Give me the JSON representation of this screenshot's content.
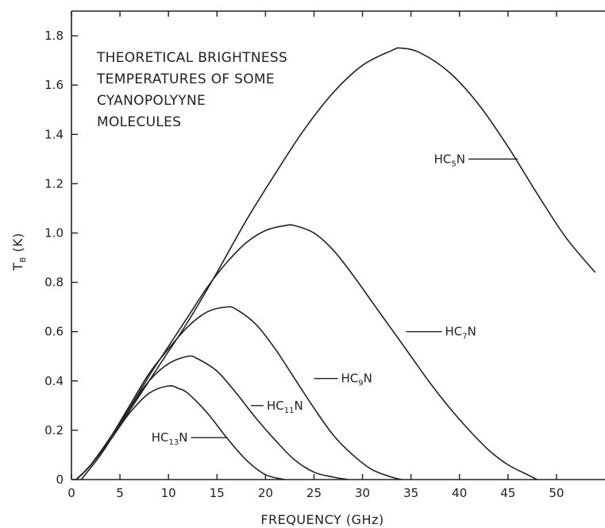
{
  "chart_data": {
    "type": "line",
    "title_lines": [
      "THEORETICAL BRIGHTNESS",
      "TEMPERATURES OF SOME",
      "CYANOPOLYYNE",
      "MOLECULES"
    ],
    "xlabel": "FREQUENCY  (GHz)",
    "ylabel": {
      "main": "T",
      "sub": "B",
      "unit": " (K)"
    },
    "xlim": [
      0,
      55
    ],
    "ylim": [
      0,
      1.9
    ],
    "x_ticks": [
      0,
      5,
      10,
      15,
      20,
      25,
      30,
      35,
      40,
      45,
      50
    ],
    "x_tick_labels": [
      "0",
      "5",
      "10",
      "15",
      "20",
      "25",
      "30",
      "35",
      "40",
      "45",
      "50"
    ],
    "y_ticks": [
      0,
      0.2,
      0.4,
      0.6,
      0.8,
      1.0,
      1.2,
      1.4,
      1.6,
      1.8
    ],
    "y_tick_labels": [
      "0",
      "0.2",
      "0.4",
      "0.6",
      "0.8",
      "1.0",
      "1.2",
      "1.4",
      "1.6",
      "1.8"
    ],
    "grid": false,
    "series": [
      {
        "name": "HC5N",
        "label_main": "HC",
        "label_sub": "5",
        "label_end": "N",
        "x": [
          1,
          3,
          5,
          7,
          9,
          12,
          15,
          18,
          21,
          24,
          27,
          30,
          33,
          34,
          36,
          39,
          42,
          45,
          48,
          51,
          54
        ],
        "y": [
          0.0,
          0.1,
          0.22,
          0.34,
          0.46,
          0.64,
          0.84,
          1.05,
          1.24,
          1.42,
          1.57,
          1.68,
          1.74,
          1.75,
          1.73,
          1.65,
          1.52,
          1.35,
          1.16,
          0.98,
          0.84
        ],
        "label_point": [
          46,
          1.3
        ]
      },
      {
        "name": "HC7N",
        "label_main": "HC",
        "label_sub": "7",
        "label_end": "N",
        "x": [
          0.5,
          2,
          4,
          6,
          8,
          10,
          12,
          14,
          16,
          18,
          20,
          22,
          23,
          25,
          27,
          29,
          31,
          33,
          35,
          37,
          39,
          41,
          43,
          45,
          47,
          48
        ],
        "y": [
          0.0,
          0.06,
          0.17,
          0.29,
          0.42,
          0.54,
          0.66,
          0.78,
          0.88,
          0.96,
          1.01,
          1.03,
          1.03,
          1.0,
          0.93,
          0.83,
          0.72,
          0.61,
          0.5,
          0.39,
          0.29,
          0.2,
          0.12,
          0.06,
          0.02,
          0.0
        ],
        "label_point": [
          34.5,
          0.6
        ]
      },
      {
        "name": "HC9N",
        "label_main": "HC",
        "label_sub": "9",
        "label_end": "N",
        "x": [
          0.5,
          2,
          4,
          6,
          8,
          10,
          12,
          14,
          16,
          17,
          19,
          21,
          23,
          25,
          27,
          29,
          31,
          33,
          34
        ],
        "y": [
          0.0,
          0.06,
          0.17,
          0.3,
          0.43,
          0.53,
          0.62,
          0.68,
          0.7,
          0.69,
          0.63,
          0.53,
          0.41,
          0.29,
          0.18,
          0.1,
          0.04,
          0.01,
          0.0
        ],
        "label_point": [
          25,
          0.41
        ]
      },
      {
        "name": "HC11N",
        "label_main": "HC",
        "label_sub": "11",
        "label_end": "N",
        "x": [
          0.5,
          2,
          4,
          6,
          8,
          10,
          12,
          13,
          15,
          17,
          19,
          21,
          23,
          25,
          27,
          28.5
        ],
        "y": [
          0.0,
          0.06,
          0.17,
          0.29,
          0.4,
          0.47,
          0.5,
          0.49,
          0.44,
          0.35,
          0.25,
          0.16,
          0.08,
          0.03,
          0.01,
          0.0
        ],
        "label_point": [
          18.5,
          0.3
        ]
      },
      {
        "name": "HC13N",
        "label_main": "HC",
        "label_sub": "13",
        "label_end": "N",
        "x": [
          0.5,
          2,
          4,
          6,
          8,
          10,
          11,
          12,
          14,
          16,
          18,
          20,
          22
        ],
        "y": [
          0.0,
          0.06,
          0.16,
          0.27,
          0.35,
          0.38,
          0.37,
          0.35,
          0.27,
          0.17,
          0.08,
          0.02,
          0.0
        ],
        "label_point": [
          16,
          0.17
        ]
      }
    ]
  }
}
